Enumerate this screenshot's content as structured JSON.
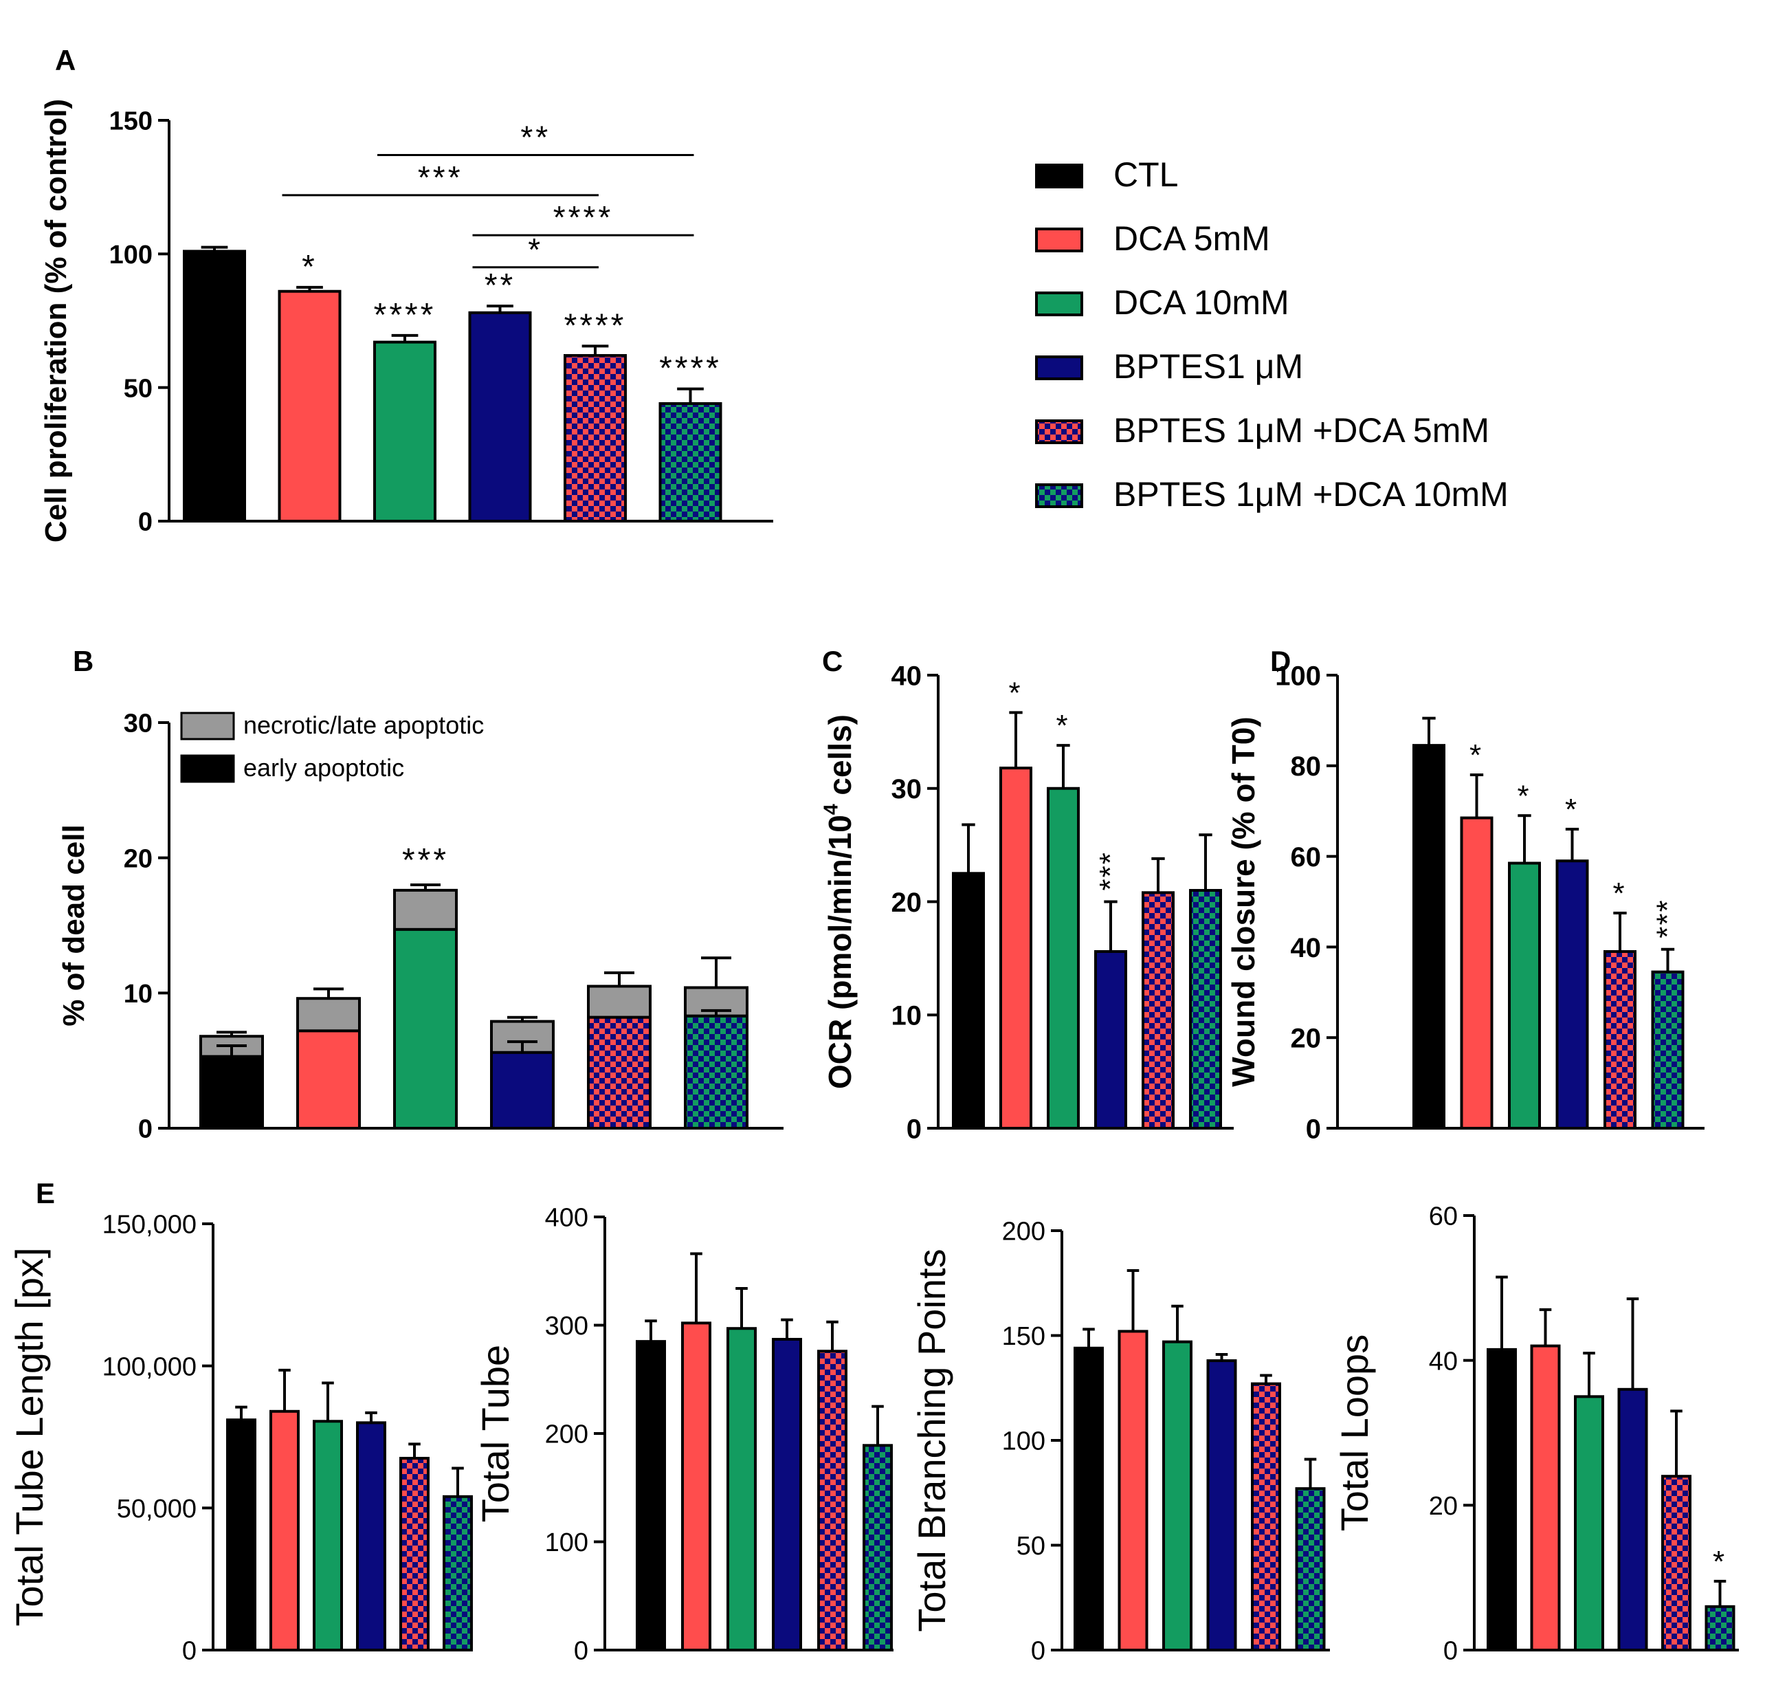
{
  "colors": {
    "CTL": "#000000",
    "DCA 5mM": "#ff4d4d",
    "DCA 10mM": "#139c60",
    "BPTES1 μM": "#0a0a7d",
    "BPTES 1μM +DCA 5mM": "#ff4d4d",
    "BPTES 1μM +DCA 10mM": "#139c60",
    "checker_blue": "#0a0a7d",
    "necrotic": "#999999",
    "axis": "#000000"
  },
  "legend": {
    "items": [
      {
        "label": "CTL",
        "color": "#000000",
        "pattern": "solid"
      },
      {
        "label": "DCA 5mM",
        "color": "#ff4d4d",
        "pattern": "solid"
      },
      {
        "label": "DCA 10mM",
        "color": "#139c60",
        "pattern": "solid"
      },
      {
        "label": "BPTES1 μM",
        "color": "#0a0a7d",
        "pattern": "solid"
      },
      {
        "label": "BPTES 1μM +DCA 5mM",
        "color": "#ff4d4d",
        "pattern": "checker"
      },
      {
        "label": "BPTES 1μM +DCA 10mM",
        "color": "#139c60",
        "pattern": "checker"
      }
    ]
  },
  "chart_data": [
    {
      "id": "A",
      "panel_label": "A",
      "type": "bar",
      "ylabel": "Cell proliferation (% of control)",
      "ylim": [
        0,
        150
      ],
      "yticks": [
        0,
        50,
        100,
        150
      ],
      "ytick_labels": [
        "0",
        "50",
        "100",
        "150"
      ],
      "categories": [
        "CTL",
        "DCA 5mM",
        "DCA 10mM",
        "BPTES1 μM",
        "BPTES 1μM +DCA 5mM",
        "BPTES 1μM +DCA 10mM"
      ],
      "values": [
        101,
        86,
        67,
        78,
        62,
        44
      ],
      "errors": [
        1.5,
        1.5,
        2.5,
        2.5,
        3.5,
        5.5
      ],
      "stars": [
        "",
        "*",
        "****",
        "**",
        "****",
        "****"
      ],
      "comparisons": [
        {
          "from": 2,
          "to": 5,
          "label": "**",
          "y": 137
        },
        {
          "from": 1,
          "to": 4,
          "label": "***",
          "y": 122
        },
        {
          "from": 3,
          "to": 5,
          "label": "****",
          "y": 107
        },
        {
          "from": 3,
          "to": 4,
          "label": "*",
          "y": 95
        }
      ]
    },
    {
      "id": "B",
      "panel_label": "B",
      "type": "stacked-bar",
      "ylabel": "% of dead cell",
      "ylim": [
        0,
        30
      ],
      "yticks": [
        0,
        10,
        20,
        30
      ],
      "ytick_labels": [
        "0",
        "10",
        "20",
        "30"
      ],
      "categories": [
        "CTL",
        "DCA 5mM",
        "DCA 10mM",
        "BPTES1 μM",
        "BPTES 1μM +DCA 5mM",
        "BPTES 1μM +DCA 10mM"
      ],
      "series": [
        {
          "name": "early apoptotic",
          "values": [
            5.3,
            7.2,
            14.7,
            5.6,
            8.2,
            8.3
          ],
          "errors": [
            0.8,
            0,
            0,
            0.8,
            0,
            0.4
          ]
        },
        {
          "name": "necrotic/late apoptotic",
          "values": [
            1.5,
            2.4,
            2.9,
            2.3,
            2.3,
            2.1
          ],
          "errors": [
            0.3,
            0.7,
            0.4,
            0.3,
            1.0,
            2.2
          ]
        }
      ],
      "stars": [
        "",
        "",
        "***",
        "",
        "",
        ""
      ],
      "legend_labels": [
        "necrotic/late apoptotic",
        "early apoptotic"
      ]
    },
    {
      "id": "C",
      "panel_label": "C",
      "type": "bar",
      "ylabel": "OCR (pmol/min/10",
      "ylabel_sup": "4",
      "ylabel_tail": " cells)",
      "ylim": [
        0,
        40
      ],
      "yticks": [
        0,
        10,
        20,
        30,
        40
      ],
      "ytick_labels": [
        "0",
        "10",
        "20",
        "30",
        "40"
      ],
      "categories": [
        "CTL",
        "DCA 5mM",
        "DCA 10mM",
        "BPTES1 μM",
        "BPTES 1μM +DCA 5mM",
        "BPTES 1μM +DCA 10mM"
      ],
      "values": [
        22.5,
        31.8,
        30,
        15.6,
        20.8,
        21
      ],
      "errors": [
        4.3,
        4.9,
        3.8,
        4.4,
        3.0,
        4.9
      ],
      "stars": [
        "",
        "*",
        "*",
        "***",
        "",
        ""
      ],
      "star_vertical": [
        false,
        false,
        false,
        true,
        false,
        false
      ]
    },
    {
      "id": "D",
      "panel_label": "D",
      "type": "bar",
      "ylabel": "Wound closure (% of T0)",
      "ylim": [
        0,
        100
      ],
      "yticks": [
        0,
        20,
        40,
        60,
        80,
        100
      ],
      "ytick_labels": [
        "0",
        "20",
        "40",
        "60",
        "80",
        "100"
      ],
      "categories": [
        "CTL",
        "DCA 5mM",
        "DCA 10mM",
        "BPTES1 μM",
        "BPTES 1μM +DCA 5mM",
        "BPTES 1μM +DCA 10mM"
      ],
      "values": [
        84.5,
        68.5,
        58.5,
        59,
        39,
        34.5
      ],
      "errors": [
        6,
        9.5,
        10.5,
        7,
        8.5,
        5
      ],
      "stars": [
        "",
        "*",
        "*",
        "*",
        "*",
        "***"
      ],
      "star_vertical": [
        false,
        false,
        false,
        false,
        false,
        true
      ]
    },
    {
      "id": "E1",
      "panel_label": "E",
      "type": "bar",
      "ylabel": "Total Tube Length [px]",
      "ylim": [
        0,
        150000
      ],
      "yticks": [
        0,
        50000,
        100000,
        150000
      ],
      "ytick_labels": [
        "0",
        "50,000",
        "100,000",
        "150,000"
      ],
      "categories": [
        "CTL",
        "DCA 5mM",
        "DCA 10mM",
        "BPTES1 μM",
        "BPTES 1μM +DCA 5mM",
        "BPTES 1μM +DCA 10mM"
      ],
      "values": [
        81000,
        84000,
        80500,
        80000,
        67500,
        54000
      ],
      "errors": [
        4500,
        14500,
        13500,
        3500,
        5000,
        10000
      ],
      "stars": [
        "",
        "",
        "",
        "",
        "",
        ""
      ]
    },
    {
      "id": "E2",
      "panel_label": "",
      "type": "bar",
      "ylabel": "Total Tube",
      "ylim": [
        0,
        400
      ],
      "yticks": [
        0,
        100,
        200,
        300,
        400
      ],
      "ytick_labels": [
        "0",
        "100",
        "200",
        "300",
        "400"
      ],
      "categories": [
        "CTL",
        "DCA 5mM",
        "DCA 10mM",
        "BPTES1 μM",
        "BPTES 1μM +DCA 5mM",
        "BPTES 1μM +DCA 10mM"
      ],
      "values": [
        285,
        302,
        297,
        287,
        276,
        189
      ],
      "errors": [
        19,
        64,
        37,
        18,
        27,
        36
      ],
      "stars": [
        "",
        "",
        "",
        "",
        "",
        ""
      ]
    },
    {
      "id": "E3",
      "panel_label": "",
      "type": "bar",
      "ylabel": "Total Branching Points",
      "ylim": [
        0,
        200
      ],
      "yticks": [
        0,
        50,
        100,
        150,
        200
      ],
      "ytick_labels": [
        "0",
        "50",
        "100",
        "150",
        "200"
      ],
      "categories": [
        "CTL",
        "DCA 5mM",
        "DCA 10mM",
        "BPTES1 μM",
        "BPTES 1μM +DCA 5mM",
        "BPTES 1μM +DCA 10mM"
      ],
      "values": [
        144,
        152,
        147,
        138,
        127,
        77
      ],
      "errors": [
        9,
        29,
        17,
        3,
        4,
        14
      ],
      "stars": [
        "",
        "",
        "",
        "",
        "",
        ""
      ]
    },
    {
      "id": "E4",
      "panel_label": "",
      "type": "bar",
      "ylabel": "Total Loops",
      "ylim": [
        0,
        60
      ],
      "yticks": [
        0,
        20,
        40,
        60
      ],
      "ytick_labels": [
        "0",
        "20",
        "40",
        "60"
      ],
      "categories": [
        "CTL",
        "DCA 5mM",
        "DCA 10mM",
        "BPTES1 μM",
        "BPTES 1μM +DCA 5mM",
        "BPTES 1μM +DCA 10mM"
      ],
      "values": [
        41.5,
        42,
        35,
        36,
        24,
        6
      ],
      "errors": [
        10,
        5,
        6,
        12.5,
        9,
        3.5
      ],
      "stars": [
        "",
        "",
        "",
        "",
        "",
        "*"
      ]
    }
  ]
}
